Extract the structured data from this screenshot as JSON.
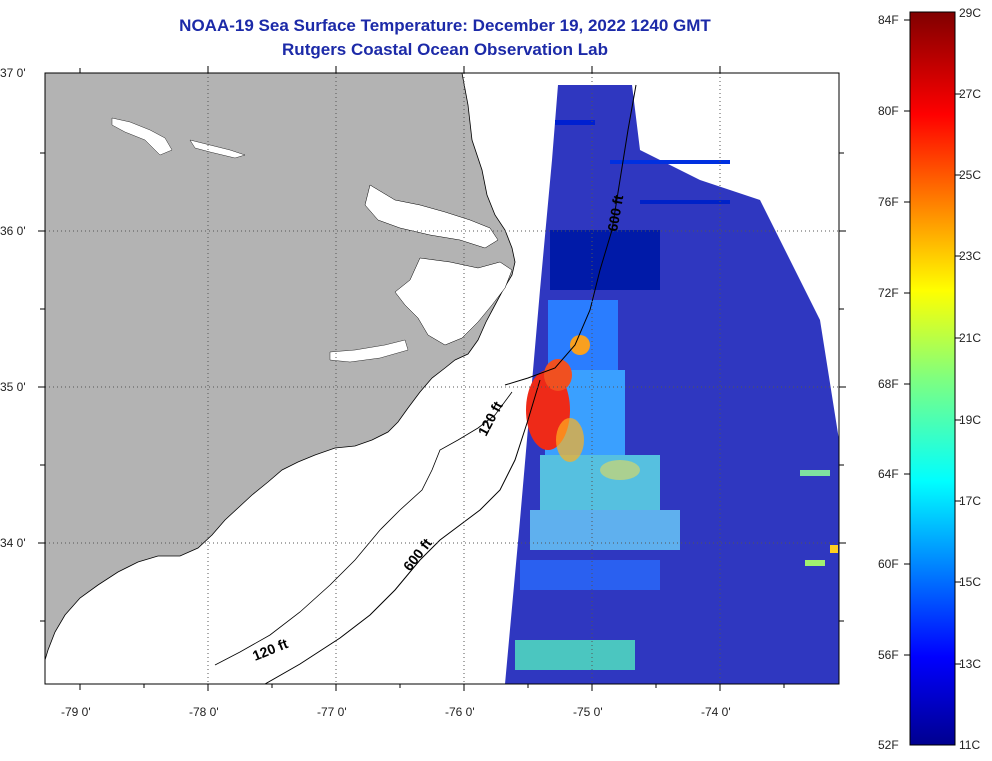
{
  "title": {
    "line1": "NOAA-19 Sea Surface Temperature:  December 19, 2022 1240 GMT",
    "line2": "Rutgers Coastal Ocean Observation Lab"
  },
  "map": {
    "lat_labels": [
      "37 0'",
      "36 0'",
      "35 0'",
      "34 0'"
    ],
    "lon_labels": [
      "-79 0'",
      "-78 0'",
      "-77 0'",
      "-76 0'",
      "-75 0'",
      "-74 0'"
    ],
    "contour_labels": [
      "600 ft",
      "120 ft",
      "600 ft",
      "120 ft"
    ],
    "colors": {
      "land": "#b3b3b3",
      "grid": "#555555",
      "coast": "#000000"
    }
  },
  "colorbar": {
    "f_labels": [
      "84F",
      "80F",
      "76F",
      "72F",
      "68F",
      "64F",
      "60F",
      "56F",
      "52F"
    ],
    "c_labels": [
      "29C",
      "27C",
      "25C",
      "23C",
      "21C",
      "19C",
      "17C",
      "15C",
      "13C",
      "11C"
    ],
    "colormap": "jet",
    "range_c": [
      11,
      29
    ]
  }
}
